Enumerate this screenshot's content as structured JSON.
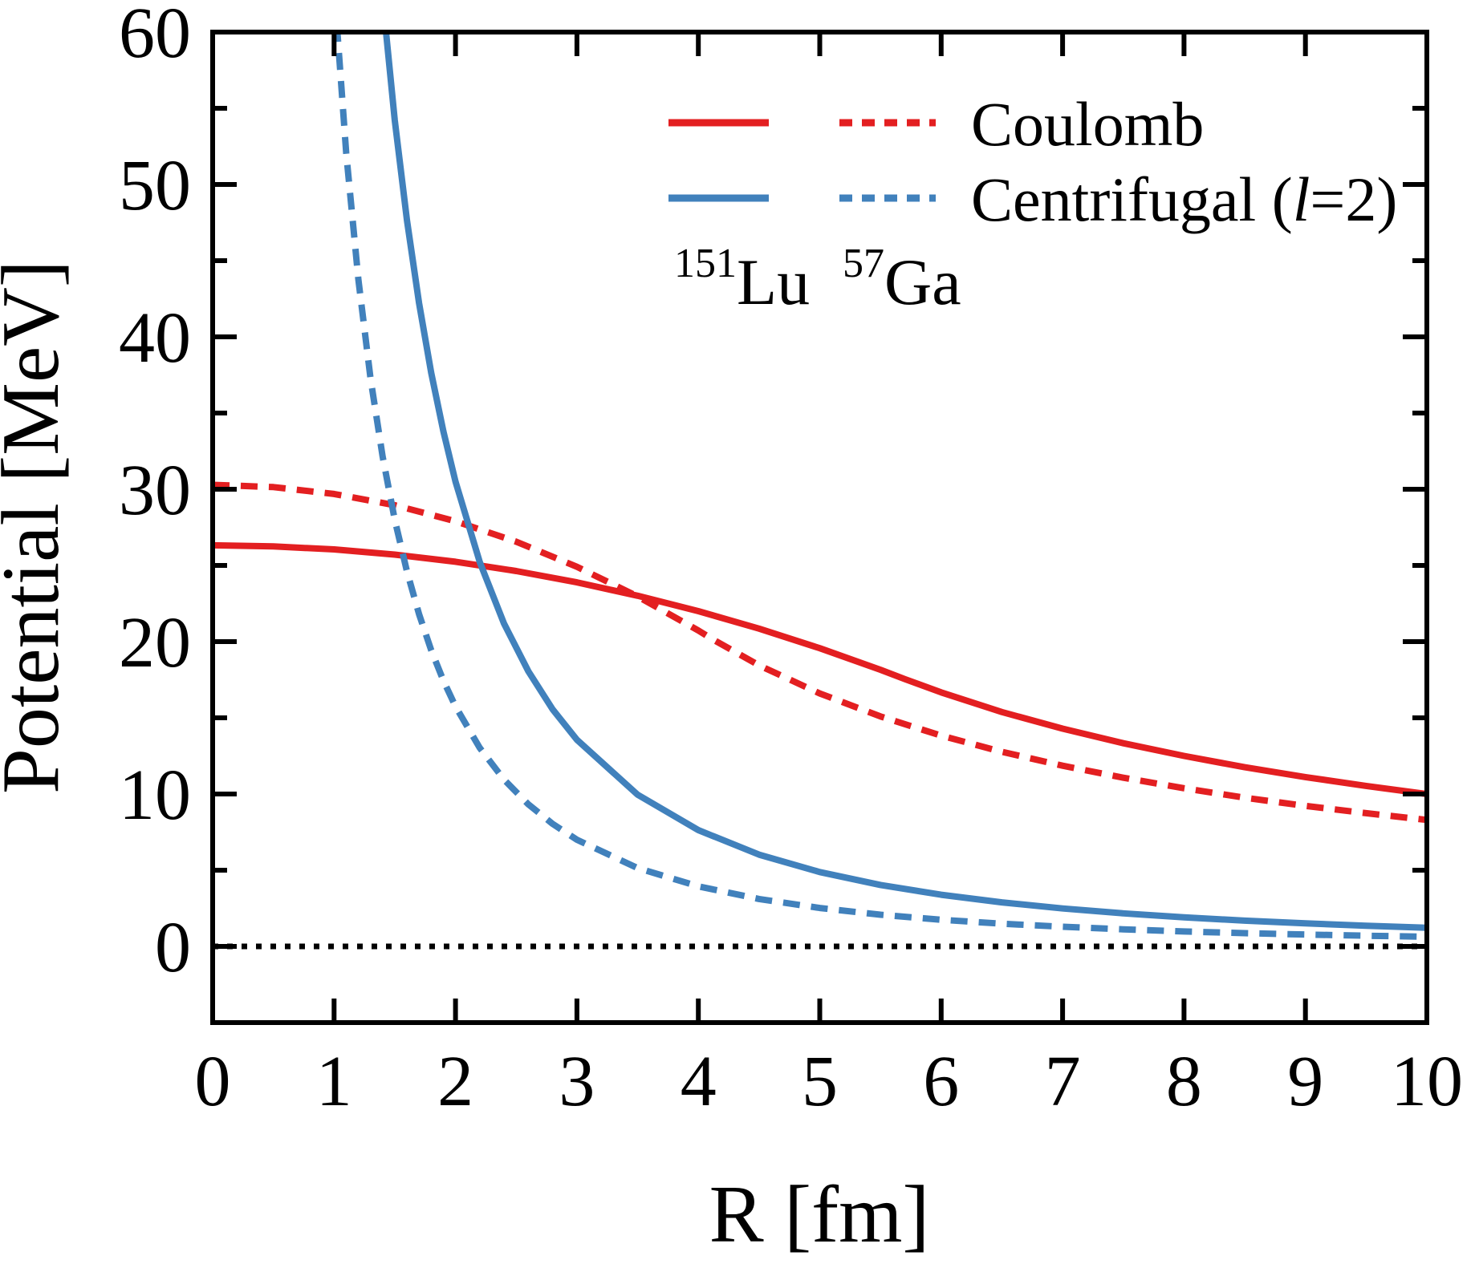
{
  "figure": {
    "xlabel": "R [fm]",
    "ylabel": "Potential [MeV]",
    "legend": {
      "entries": [
        {
          "label_pre": "Coulomb",
          "label_italic": "",
          "label_post": ""
        },
        {
          "label_pre": "Centrifugal (",
          "label_italic": "l",
          "label_post": "=2)"
        }
      ],
      "columns": [
        {
          "header_sup": "151",
          "header_base": "Lu",
          "line_style": "solid"
        },
        {
          "header_sup": "57",
          "header_base": "Ga",
          "line_style": "dashed"
        }
      ]
    }
  },
  "chart_data": {
    "type": "line",
    "title": "",
    "xlabel": "R [fm]",
    "ylabel": "Potential [MeV]",
    "xlim": [
      0,
      10
    ],
    "ylim": [
      -5,
      60
    ],
    "x_ticks": [
      0,
      1,
      2,
      3,
      4,
      5,
      6,
      7,
      8,
      9,
      10
    ],
    "y_ticks": [
      0,
      10,
      20,
      30,
      40,
      50,
      60
    ],
    "y_minor_ticks": [
      5,
      15,
      25,
      35,
      45,
      55
    ],
    "grid": false,
    "legend_position": "top-center",
    "reference_lines": [
      {
        "y": 0,
        "style": "dotted",
        "color": "#000000"
      }
    ],
    "series": [
      {
        "name": "Coulomb 151Lu",
        "potential": "Coulomb",
        "nucleus": "151Lu",
        "color": "#e31f21",
        "line_style": "solid",
        "x": [
          0,
          0.5,
          1,
          1.5,
          2,
          2.5,
          3,
          3.5,
          4,
          4.5,
          5,
          5.5,
          5.7,
          6,
          6.5,
          7,
          7.5,
          8,
          8.5,
          9,
          9.5,
          10
        ],
        "y": [
          26.32,
          26.25,
          26.05,
          25.71,
          25.24,
          24.63,
          23.89,
          23.01,
          22.0,
          20.85,
          19.57,
          18.15,
          17.54,
          16.67,
          15.38,
          14.29,
          13.33,
          12.5,
          11.76,
          11.11,
          10.53,
          10.0
        ]
      },
      {
        "name": "Coulomb 57Ga",
        "potential": "Coulomb",
        "nucleus": "57Ga",
        "color": "#e31f21",
        "line_style": "dashed",
        "x": [
          0,
          0.5,
          1,
          1.5,
          2,
          2.5,
          3,
          3.5,
          4,
          4.11,
          4.5,
          5,
          5.5,
          6,
          6.5,
          7,
          7.5,
          8,
          8.5,
          9,
          9.5,
          10
        ],
        "y": [
          30.29,
          30.14,
          29.69,
          28.95,
          27.9,
          26.56,
          24.91,
          22.97,
          20.73,
          20.19,
          18.44,
          16.6,
          15.09,
          13.83,
          12.77,
          11.86,
          11.07,
          10.38,
          9.76,
          9.22,
          8.74,
          8.3
        ]
      },
      {
        "name": "Centrifugal (l=2) 151Lu",
        "potential": "Centrifugal (l=2)",
        "nucleus": "151Lu",
        "color": "#4181bc",
        "line_style": "solid",
        "x": [
          1.0,
          1.1,
          1.2,
          1.3,
          1.4,
          1.5,
          1.6,
          1.7,
          1.8,
          1.9,
          2,
          2.2,
          2.4,
          2.6,
          2.8,
          3,
          3.5,
          4,
          4.5,
          5,
          5.5,
          6,
          6.5,
          7,
          7.5,
          8,
          8.5,
          9,
          9.5,
          10
        ],
        "y": [
          122.0,
          100.83,
          84.72,
          72.19,
          62.24,
          54.22,
          47.66,
          42.21,
          37.65,
          33.8,
          30.5,
          25.21,
          21.18,
          18.05,
          15.56,
          13.56,
          9.96,
          7.63,
          6.02,
          4.88,
          4.03,
          3.39,
          2.89,
          2.49,
          2.17,
          1.91,
          1.69,
          1.51,
          1.35,
          1.22
        ]
      },
      {
        "name": "Centrifugal (l=2) 57Ga",
        "potential": "Centrifugal (l=2)",
        "nucleus": "57Ga",
        "color": "#4181bc",
        "line_style": "dashed",
        "x": [
          0.7,
          0.8,
          0.9,
          1.0,
          1.1,
          1.2,
          1.3,
          1.4,
          1.5,
          1.6,
          1.7,
          1.8,
          1.9,
          2,
          2.2,
          2.4,
          2.6,
          2.8,
          3,
          3.5,
          4,
          4.5,
          5,
          5.5,
          6,
          6.5,
          7,
          7.5,
          8,
          8.5,
          9,
          9.5,
          10
        ],
        "y": [
          128.57,
          98.44,
          77.78,
          63.0,
          52.07,
          43.75,
          37.28,
          32.14,
          28.0,
          24.61,
          21.8,
          19.44,
          17.45,
          15.75,
          13.02,
          10.94,
          9.32,
          8.04,
          7.0,
          5.14,
          3.94,
          3.11,
          2.52,
          2.08,
          1.75,
          1.49,
          1.29,
          1.12,
          0.98,
          0.87,
          0.78,
          0.7,
          0.63
        ]
      }
    ]
  }
}
